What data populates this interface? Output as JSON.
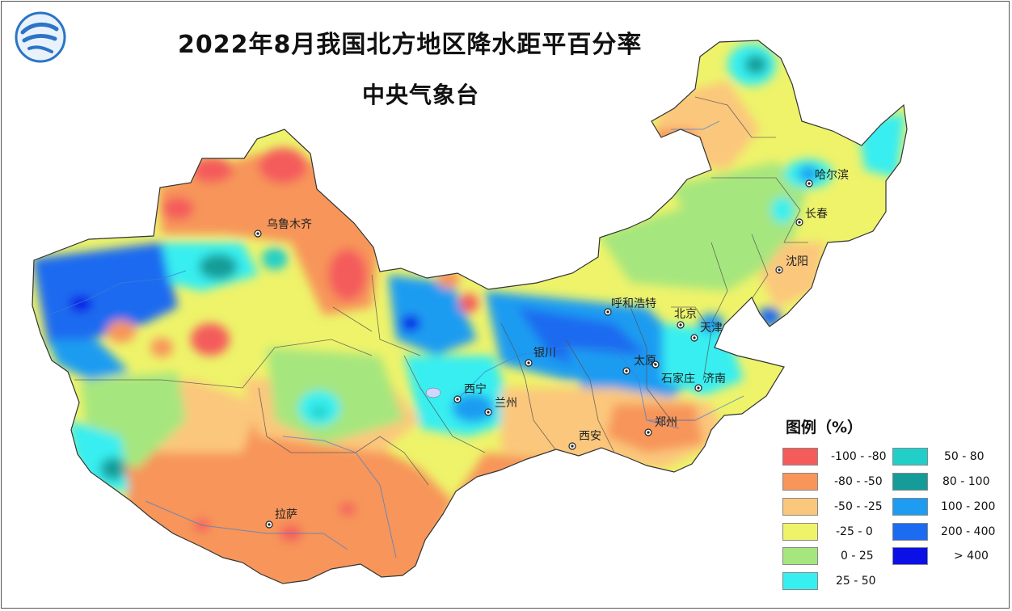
{
  "header": {
    "title": "2022年8月我国北方地区降水距平百分率",
    "subtitle": "中央气象台"
  },
  "cities": [
    {
      "id": "urumqi",
      "name": "乌鲁木齐"
    },
    {
      "id": "harbin",
      "name": "哈尔滨"
    },
    {
      "id": "changchun",
      "name": "长春"
    },
    {
      "id": "shenyang",
      "name": "沈阳"
    },
    {
      "id": "hohhot",
      "name": "呼和浩特"
    },
    {
      "id": "beijing",
      "name": "北京"
    },
    {
      "id": "tianjin",
      "name": "天津"
    },
    {
      "id": "yinchuan",
      "name": "银川"
    },
    {
      "id": "taiyuan",
      "name": "太原"
    },
    {
      "id": "shijiazhuang",
      "name": "石家庄"
    },
    {
      "id": "jinan",
      "name": "济南"
    },
    {
      "id": "xining",
      "name": "西宁"
    },
    {
      "id": "lanzhou",
      "name": "兰州"
    },
    {
      "id": "zhengzhou",
      "name": "郑州"
    },
    {
      "id": "xian",
      "name": "西安"
    },
    {
      "id": "lhasa",
      "name": "拉萨"
    }
  ],
  "legend": {
    "title": "图例（%）",
    "items": [
      {
        "label": "-100 - -80",
        "color": "#f45c5c"
      },
      {
        "label": "-80 - -50",
        "color": "#f7955a"
      },
      {
        "label": "-50 - -25",
        "color": "#fbc77c"
      },
      {
        "label": "-25 - 0",
        "color": "#eef36a"
      },
      {
        "label": "0 - 25",
        "color": "#a6e67e"
      },
      {
        "label": "25 - 50",
        "color": "#37eef0"
      },
      {
        "label": "50 - 80",
        "color": "#22cfc8"
      },
      {
        "label": "80 - 100",
        "color": "#169c98"
      },
      {
        "label": "100 - 200",
        "color": "#1d9cf1"
      },
      {
        "label": "200 - 400",
        "color": "#1c6bf0"
      },
      {
        "label": "> 400",
        "color": "#0a10e6"
      }
    ]
  }
}
